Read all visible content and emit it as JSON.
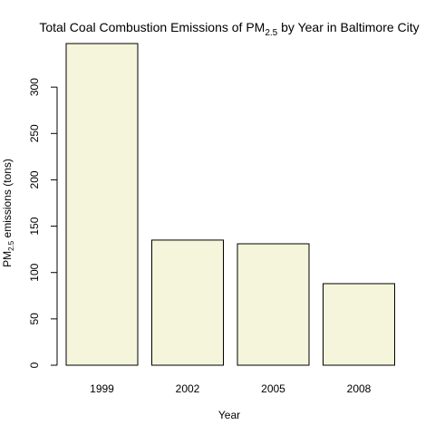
{
  "chart_data": {
    "type": "bar",
    "title": {
      "main": "Total Coal Combustion Emissions of PM",
      "sub": "2.5",
      "rest": " by Year in Baltimore City"
    },
    "xlabel": "Year",
    "ylabel": {
      "main": "PM",
      "sub": "2.5",
      "rest": " emissions (tons)"
    },
    "categories": [
      "1999",
      "2002",
      "2005",
      "2008"
    ],
    "values": [
      347,
      135,
      131,
      88
    ],
    "ylim": [
      0,
      350
    ],
    "yticks": [
      0,
      50,
      100,
      150,
      200,
      250,
      300
    ],
    "bar_color": "#f5f5dc",
    "grid": false,
    "legend": "none"
  }
}
